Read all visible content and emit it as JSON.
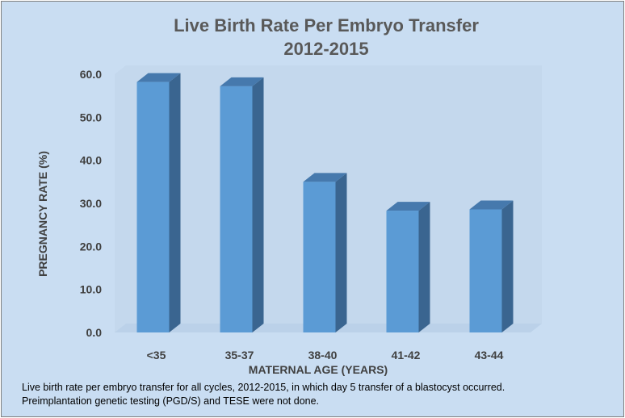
{
  "chart_data": {
    "type": "bar",
    "title": [
      "Live Birth Rate Per Embryo Transfer",
      "2012-2015"
    ],
    "xlabel": "MATERNAL AGE (YEARS)",
    "ylabel": "PREGNANCY RATE (%)",
    "categories": [
      "<35",
      "35-37",
      "38-40",
      "41-42",
      "43-44"
    ],
    "values": [
      58.2,
      57.2,
      35.0,
      28.3,
      28.6
    ],
    "ylim": [
      0,
      60
    ],
    "yticks": [
      "0.0",
      "10.0",
      "20.0",
      "30.0",
      "40.0",
      "50.0",
      "60.0"
    ],
    "grid": false,
    "legend": "none"
  },
  "caption": {
    "line1": "Live birth rate per embryo transfer for all cycles, 2012-2015,   in which day 5  transfer of a  blastocyst occurred.",
    "line2": "Preimplantation genetic testing (PGD/S) and TESE were not done."
  },
  "colors": {
    "background": "#c9ddf2",
    "bar_front": "#5b9bd5",
    "bar_side": "#3a6590",
    "bar_top": "#4679ad",
    "wall": "#bfd3ea"
  }
}
